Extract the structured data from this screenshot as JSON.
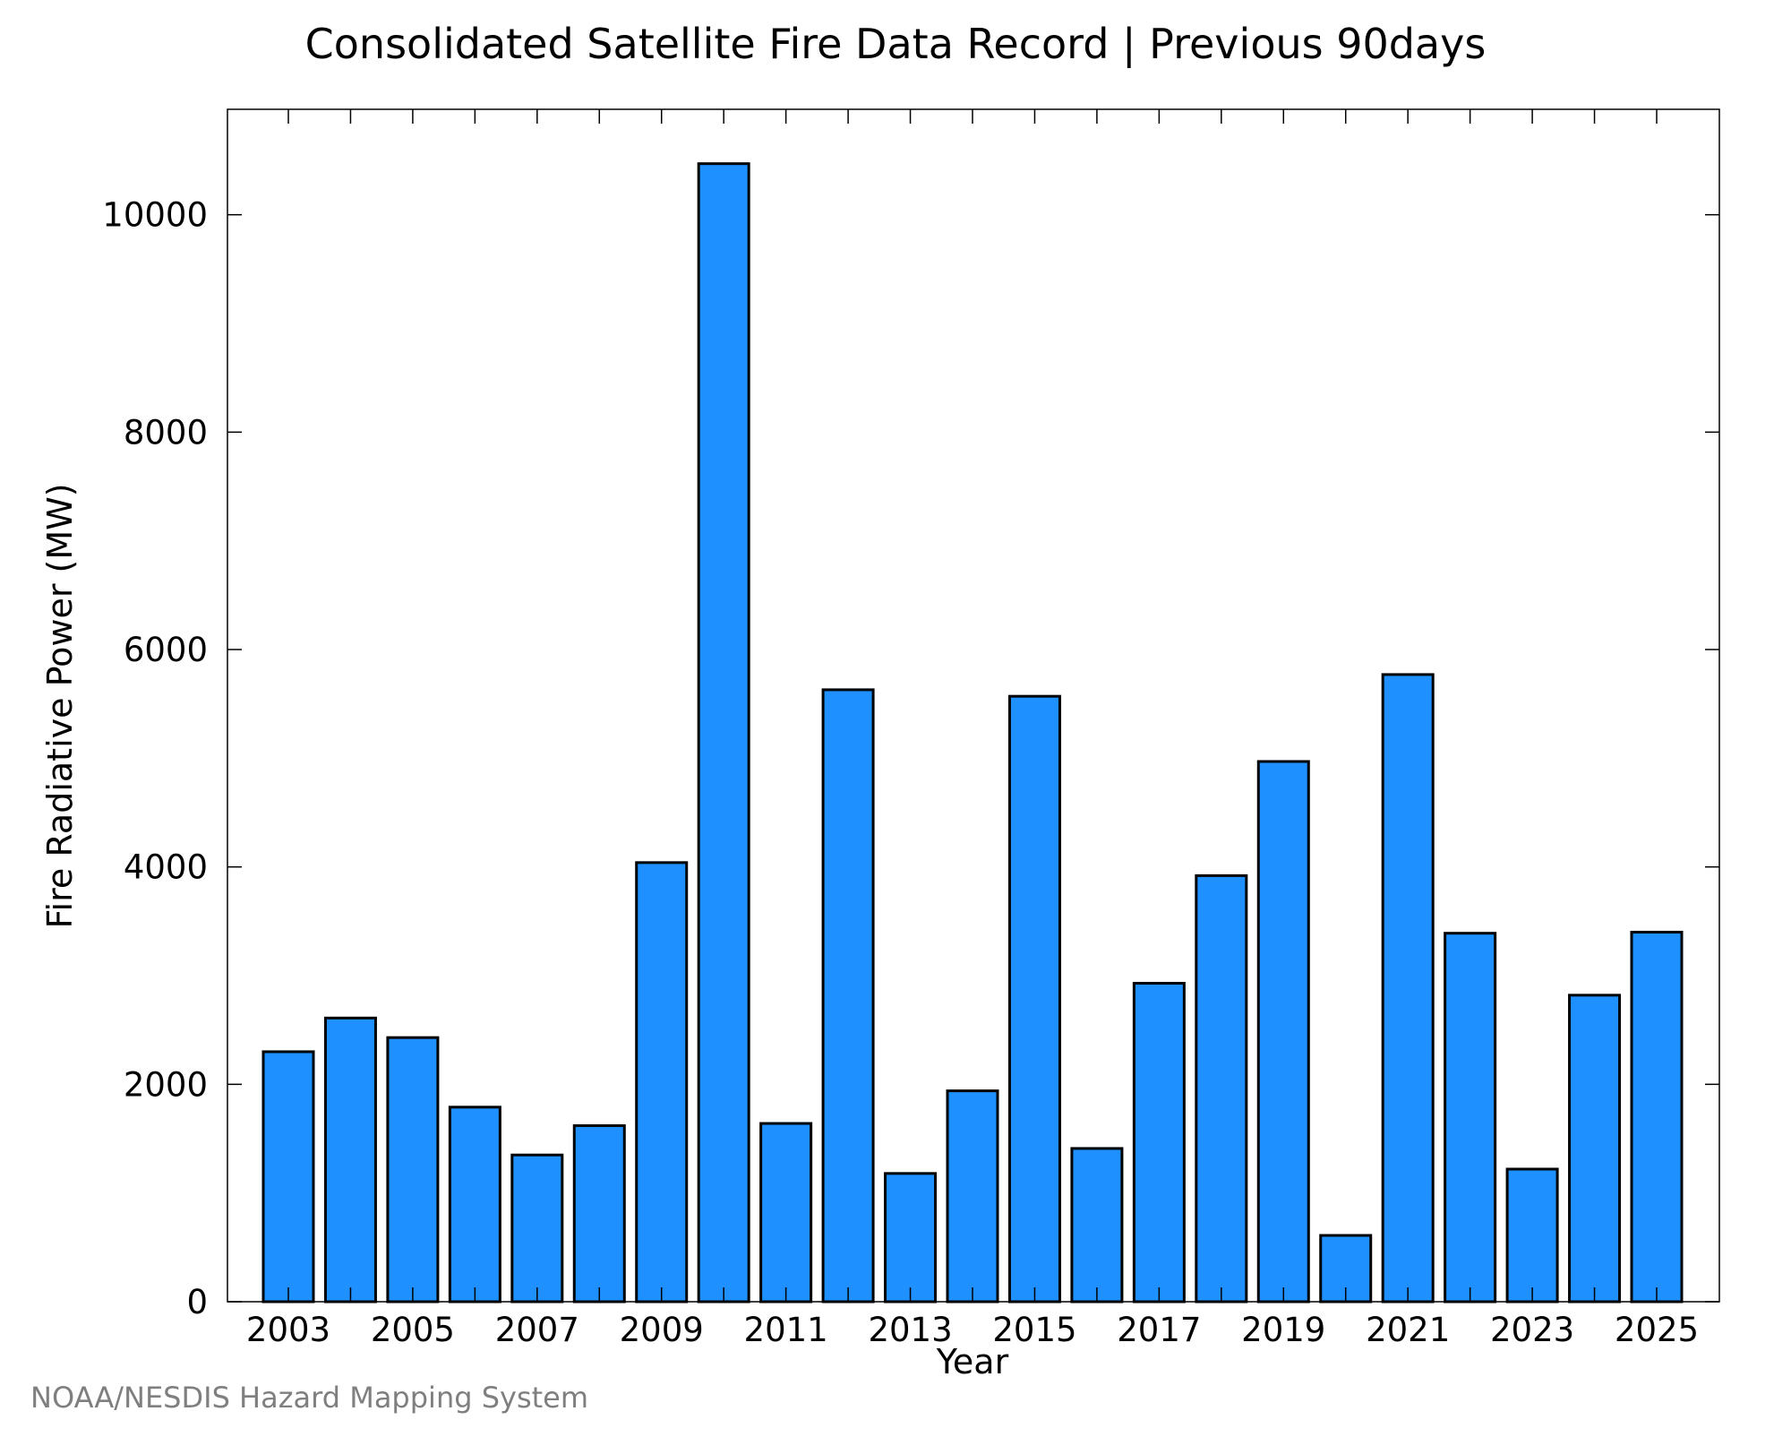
{
  "chart_data": {
    "type": "bar",
    "title": "Consolidated Satellite Fire Data Record | Previous 90days",
    "xlabel": "Year",
    "ylabel": "Fire Radiative Power (MW)",
    "categories": [
      "2003",
      "2004",
      "2005",
      "2006",
      "2007",
      "2008",
      "2009",
      "2010",
      "2011",
      "2012",
      "2013",
      "2014",
      "2015",
      "2016",
      "2017",
      "2018",
      "2019",
      "2020",
      "2021",
      "2022",
      "2023",
      "2024",
      "2025"
    ],
    "values": [
      2300,
      2610,
      2430,
      1790,
      1350,
      1620,
      4040,
      10470,
      1640,
      5630,
      1180,
      1940,
      5570,
      1410,
      2930,
      3920,
      4970,
      610,
      5770,
      3390,
      1220,
      2820,
      3400
    ],
    "x_tick_labels": [
      "2003",
      "2005",
      "2007",
      "2009",
      "2011",
      "2013",
      "2015",
      "2017",
      "2019",
      "2021",
      "2023",
      "2025"
    ],
    "y_ticks": [
      0,
      2000,
      4000,
      6000,
      8000,
      10000
    ],
    "ylim": [
      0,
      10970
    ],
    "grid": false,
    "bar_color": "#1e90ff",
    "bar_edge_color": "#000000"
  },
  "credit": "NOAA/NESDIS Hazard Mapping System"
}
